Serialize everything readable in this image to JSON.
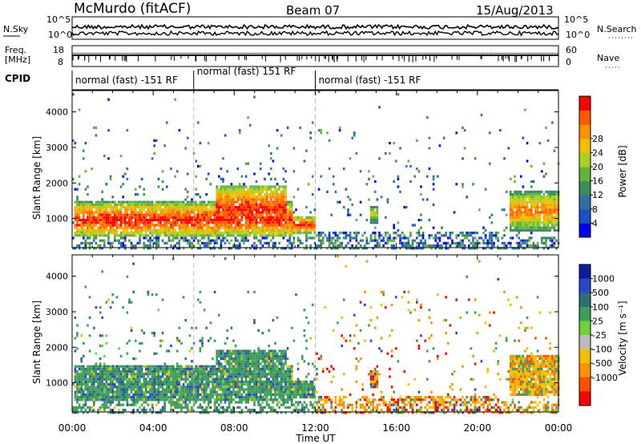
{
  "header": {
    "station": "McMurdo (fitACF)",
    "beam": "Beam 07",
    "date": "15/Aug/2013"
  },
  "side_labels": {
    "nsky": "N.Sky",
    "freq_line1": "Freq.",
    "freq_line2": "[MHz]",
    "cpid": "CPID",
    "nsearch": "N.Search",
    "nave": "Nave"
  },
  "strip_ticks": {
    "noise_left": [
      "10^5",
      "10^0"
    ],
    "noise_right": [
      "10^5",
      "10^0"
    ],
    "freq_left": [
      "18",
      "8"
    ],
    "nave_right": [
      "60",
      "0"
    ]
  },
  "cpid_segments": [
    {
      "label": "normal (fast) -151 RF",
      "start_hour": 0,
      "end_hour": 6
    },
    {
      "label": "normal (fast) 151 RF",
      "start_hour": 6,
      "end_hour": 12
    },
    {
      "label": "normal (fast) -151 RF",
      "start_hour": 12,
      "end_hour": 24
    }
  ],
  "chart_data": [
    {
      "type": "heatmap",
      "name": "power",
      "ylabel": "Slant Range [km]",
      "ylim": [
        180,
        4600
      ],
      "yticks": [
        "1000",
        "2000",
        "3000",
        "4000"
      ],
      "xlim": [
        0,
        24
      ],
      "colorbar": {
        "label": "Power [dB]",
        "ticks": [
          "4",
          "8",
          "12",
          "16",
          "20",
          "24",
          "28"
        ],
        "colors": [
          "#0000ff",
          "#1a50c8",
          "#3070a0",
          "#3c8c5a",
          "#64b43c",
          "#a8d020",
          "#f0c000",
          "#ff9000",
          "#ff5a00",
          "#ff0000"
        ]
      },
      "regions": [
        {
          "hours": [
            0.1,
            10.8
          ],
          "range": [
            500,
            1500
          ],
          "level": "high"
        },
        {
          "hours": [
            7.0,
            10.5
          ],
          "range": [
            600,
            2000
          ],
          "level": "high"
        },
        {
          "hours": [
            10.8,
            12.0
          ],
          "range": [
            600,
            1100
          ],
          "level": "high"
        },
        {
          "hours": [
            14.6,
            15.1
          ],
          "range": [
            900,
            1400
          ],
          "level": "mid"
        },
        {
          "hours": [
            21.5,
            24.0
          ],
          "range": [
            700,
            1800
          ],
          "level": "mid-high"
        }
      ]
    },
    {
      "type": "heatmap",
      "name": "velocity",
      "ylabel": "Slant Range [km]",
      "ylim": [
        180,
        4600
      ],
      "yticks": [
        "1000",
        "2000",
        "3000",
        "4000"
      ],
      "xlim": [
        0,
        24
      ],
      "xlabel": "Time UT",
      "xticks": [
        "00:00",
        "04:00",
        "08:00",
        "12:00",
        "16:00",
        "20:00",
        "00:00"
      ],
      "colorbar": {
        "label": "Velocity [m s⁻¹]",
        "ticks": [
          "1000",
          "500",
          "100",
          "25",
          "-25",
          "-100",
          "-500",
          "-1000"
        ],
        "colors": [
          "#0a1e9c",
          "#2848c8",
          "#2e6e74",
          "#3c9c5a",
          "#6ed23c",
          "#bcbcbc",
          "#f0c000",
          "#ff9000",
          "#ff5000",
          "#ff0000"
        ]
      }
    }
  ]
}
